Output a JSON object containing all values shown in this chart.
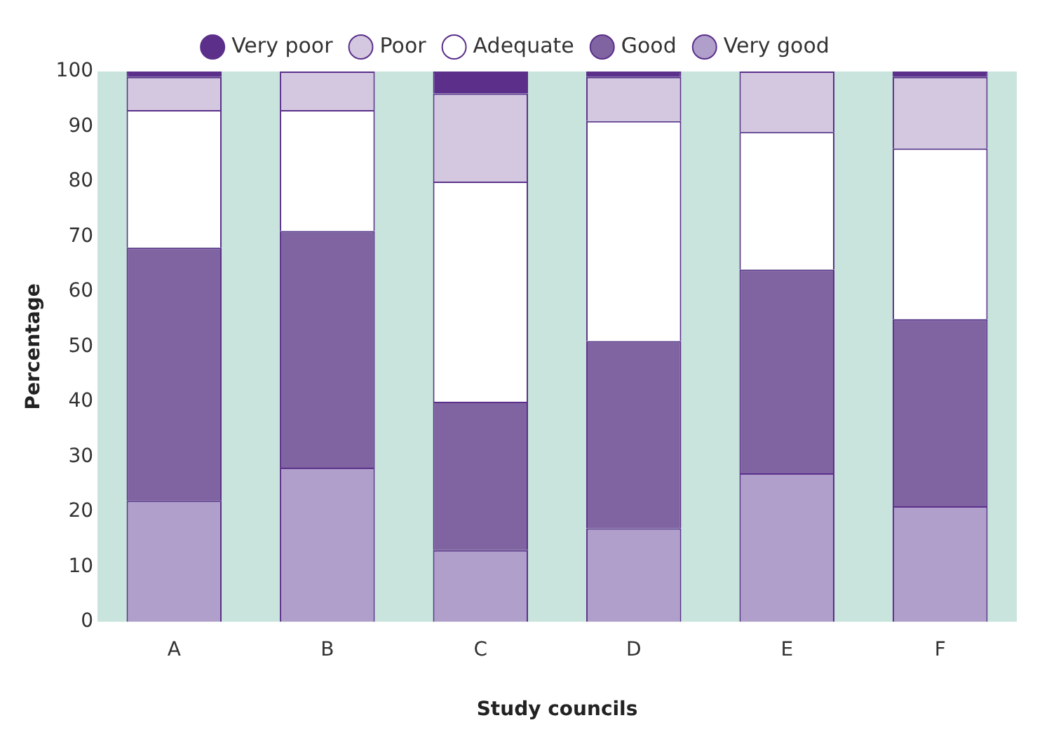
{
  "chart_data": {
    "type": "bar",
    "stacked": true,
    "xlabel": "Study councils",
    "ylabel": "Percentage",
    "categories": [
      "A",
      "B",
      "C",
      "D",
      "E",
      "F"
    ],
    "series": [
      {
        "name": "Very good",
        "color": "#b09fcb",
        "values": [
          22,
          28,
          13,
          17,
          27,
          21
        ]
      },
      {
        "name": "Good",
        "color": "#8064a2",
        "values": [
          46,
          43,
          27,
          34,
          37,
          34
        ]
      },
      {
        "name": "Adequate",
        "color": "#ffffff",
        "values": [
          25,
          22,
          40,
          40,
          25,
          31
        ]
      },
      {
        "name": "Poor",
        "color": "#d4c8e0",
        "values": [
          6,
          7,
          16,
          8,
          11,
          13
        ]
      },
      {
        "name": "Very poor",
        "color": "#5b2f8a",
        "values": [
          1,
          0,
          4,
          1,
          0,
          1
        ]
      }
    ],
    "ylim": [
      0,
      100
    ],
    "yticks": [
      0,
      10,
      20,
      30,
      40,
      50,
      60,
      70,
      80,
      90,
      100
    ],
    "grid": false,
    "legend": "top"
  }
}
